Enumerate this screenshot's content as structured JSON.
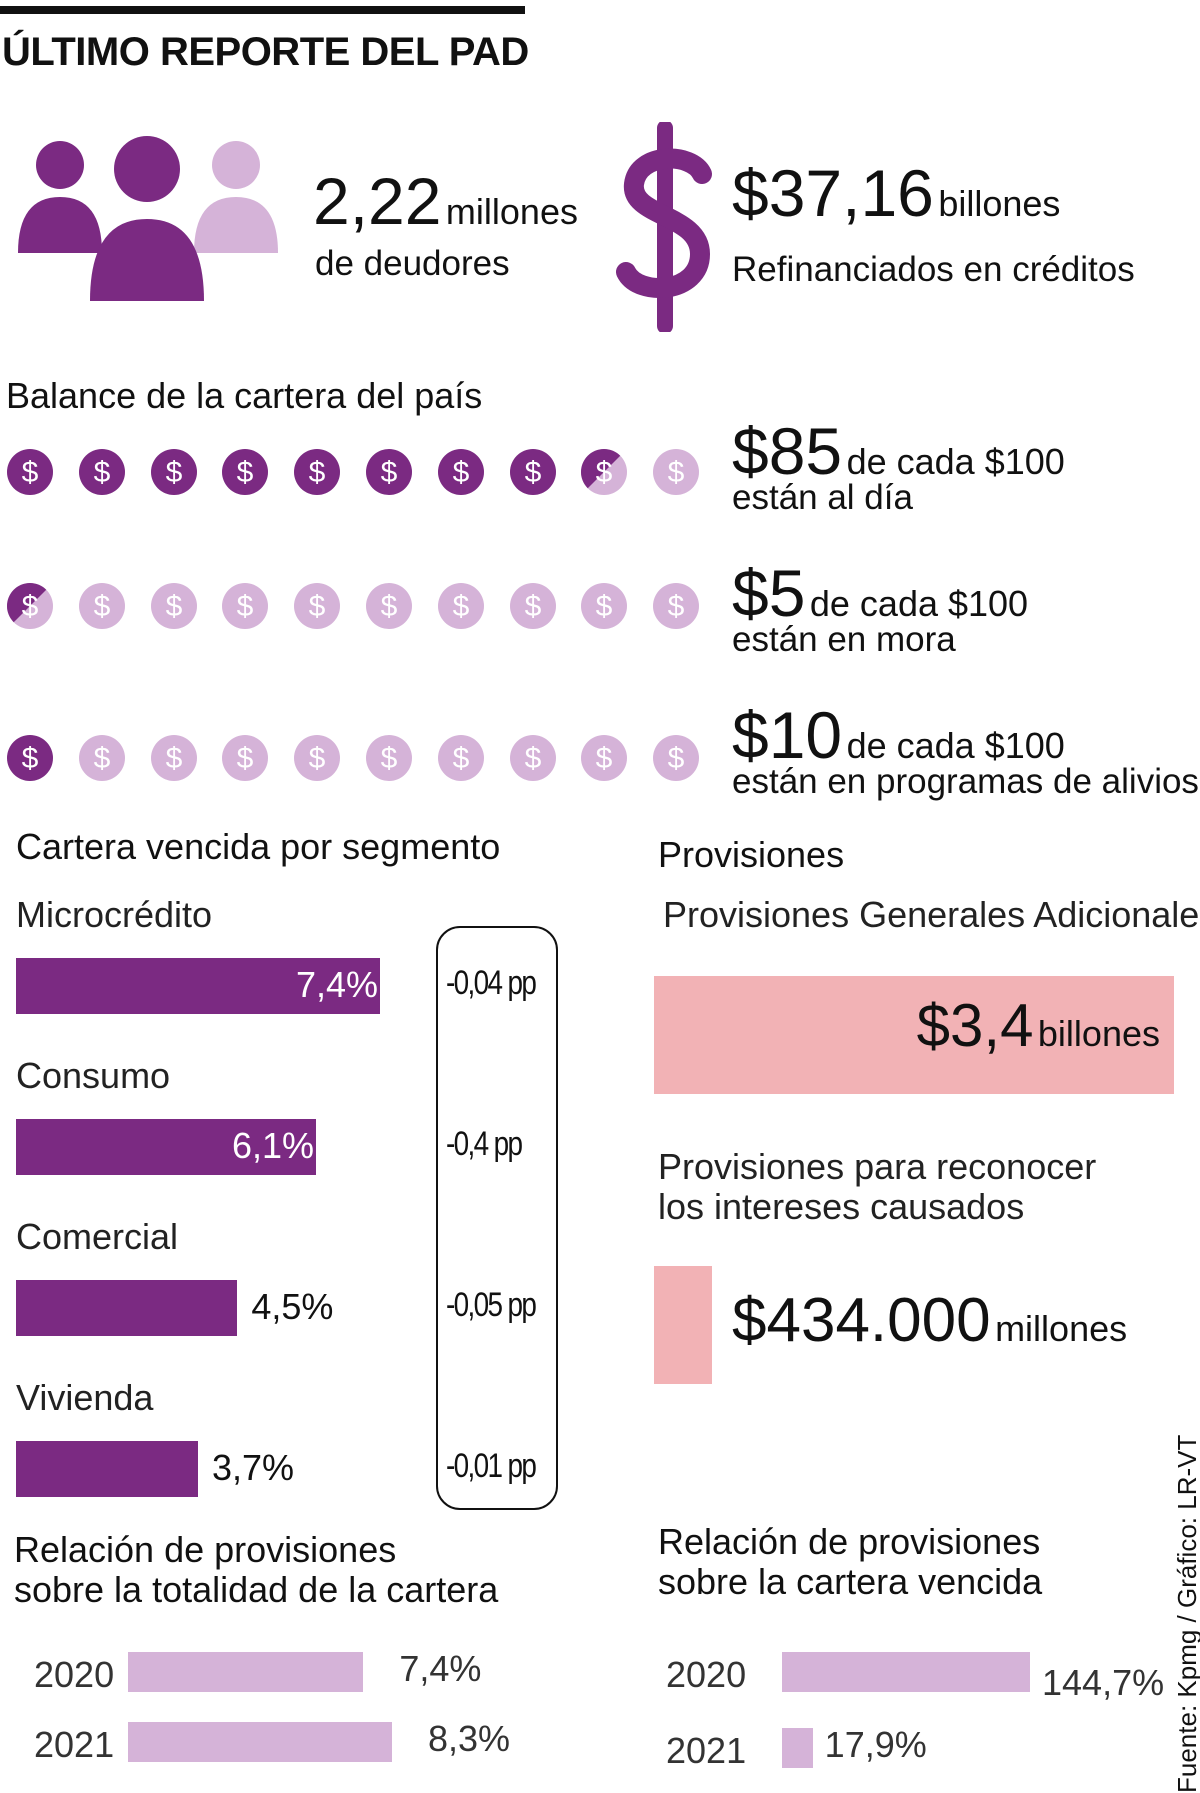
{
  "header": {
    "title": "ÚLTIMO REPORTE DEL PAD"
  },
  "debtors": {
    "value": "2,22",
    "unit": "millones",
    "caption": "de deudores"
  },
  "refinanced": {
    "value": "$37,16",
    "unit": "billones",
    "caption": "Refinanciados en créditos"
  },
  "colors": {
    "purple": "#7b2a82",
    "lavender": "#d5b3d8",
    "pink": "#f2b2b5"
  },
  "icons": {
    "people": "people-icon",
    "dollar": "dollar-sign-icon",
    "coin": "dollar-coin-icon"
  },
  "balance": {
    "title": "Balance de la cartera del país",
    "rows": [
      {
        "value": "$85",
        "unit": "de cada $100",
        "caption": "están al día",
        "filled_coins": 8.5
      },
      {
        "value": "$5",
        "unit": "de cada $100",
        "caption": "están en mora",
        "filled_coins": 0.5
      },
      {
        "value": "$10",
        "unit": "de cada $100",
        "caption": "están en programas de alivios",
        "filled_coins": 1
      }
    ]
  },
  "chart_data": [
    {
      "type": "bar",
      "title": "Cartera vencida por segmento",
      "categories": [
        "Microcrédito",
        "Consumo",
        "Comercial",
        "Vivienda"
      ],
      "values": [
        7.4,
        6.1,
        4.5,
        3.7
      ],
      "value_labels": [
        "7,4%",
        "6,1%",
        "4,5%",
        "3,7%"
      ],
      "changes": [
        "-0,04 pp",
        "-0,4 pp",
        "-0,05 pp",
        "-0,01 pp"
      ],
      "unit": "%"
    },
    {
      "type": "bar",
      "title": "Relación de provisiones sobre la totalidad de la cartera",
      "title_lines": [
        "Relación de provisiones",
        "sobre la totalidad de la cartera"
      ],
      "categories": [
        "2020",
        "2021"
      ],
      "values": [
        7.4,
        8.3
      ],
      "value_labels": [
        "7,4%",
        "8,3%"
      ],
      "unit": "%"
    },
    {
      "type": "bar",
      "title": "Relación de provisiones sobre la cartera vencida",
      "title_lines": [
        "Relación de provisiones",
        "sobre la cartera vencida"
      ],
      "categories": [
        "2020",
        "2021"
      ],
      "values": [
        144.7,
        17.9
      ],
      "value_labels": [
        "144,7%",
        "17,9%"
      ],
      "unit": "%"
    }
  ],
  "provisions": {
    "title": "Provisiones",
    "general": {
      "label": "Provisiones Generales Adicionales",
      "value": "$3,4",
      "unit": "billones"
    },
    "interest": {
      "label_lines": [
        "Provisiones para reconocer",
        "los intereses causados"
      ],
      "value": "$434.000",
      "unit": "millones"
    }
  },
  "source": "Fuente: Kpmg  / Gráfico: LR-VT"
}
